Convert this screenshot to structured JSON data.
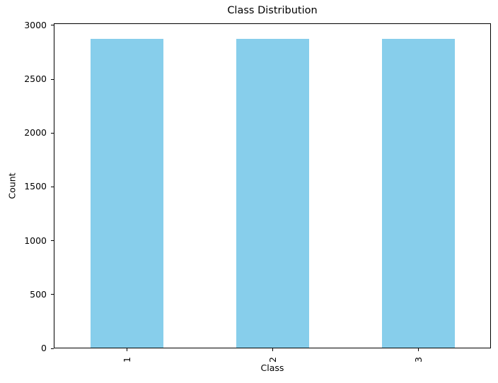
{
  "chart_data": {
    "type": "bar",
    "title": "Class Distribution",
    "xlabel": "Class",
    "ylabel": "Count",
    "categories": [
      "1",
      "2",
      "3"
    ],
    "values": [
      2875,
      2875,
      2875
    ],
    "yticks": [
      0,
      500,
      1000,
      1500,
      2000,
      2500,
      3000
    ],
    "ylim": [
      0,
      3018.75
    ],
    "xtick_rotation": 90,
    "bar_color": "#87CEEB",
    "background_color": "#FFFFFF",
    "grid": false,
    "legend": "none"
  }
}
